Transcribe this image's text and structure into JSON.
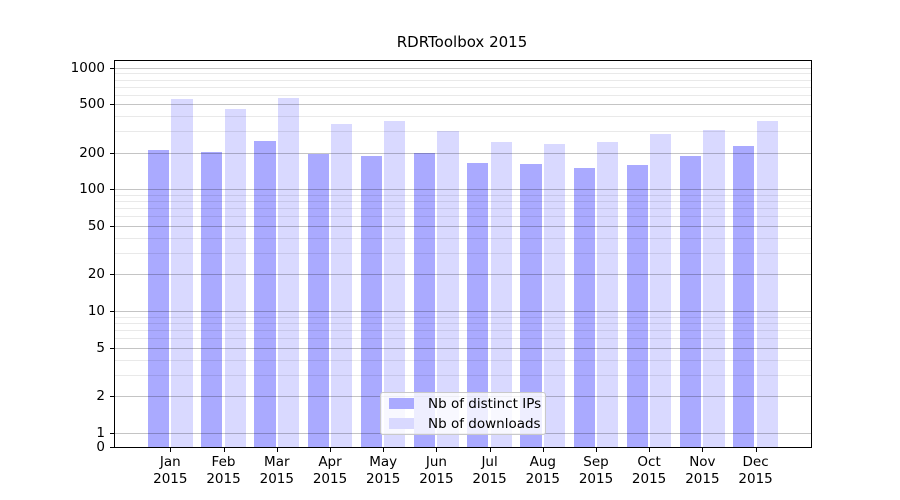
{
  "figure": {
    "background": "#ffffff"
  },
  "chart_data": {
    "type": "bar",
    "title": "RDRToolbox 2015",
    "categories": [
      "Jan 2015",
      "Feb 2015",
      "Mar 2015",
      "Apr 2015",
      "May 2015",
      "Jun 2015",
      "Jul 2015",
      "Aug 2015",
      "Sep 2015",
      "Oct 2015",
      "Nov 2015",
      "Dec 2015"
    ],
    "series": [
      {
        "name": "Nb of distinct IPs",
        "color": "#aaaaff",
        "values": [
          212,
          205,
          250,
          196,
          189,
          199,
          165,
          162,
          150,
          160,
          190,
          227
        ]
      },
      {
        "name": "Nb of downloads",
        "color": "#d9d9ff",
        "values": [
          555,
          461,
          560,
          346,
          365,
          305,
          245,
          238,
          245,
          286,
          307,
          365
        ]
      }
    ],
    "xlabel": "",
    "ylabel": "",
    "yscale": "log-with-zero",
    "yticks": [
      0,
      1,
      2,
      5,
      10,
      20,
      50,
      100,
      200,
      500,
      1000
    ],
    "ylim": [
      0,
      1000
    ],
    "grid": true,
    "grid_major_color": "#c4c4c4",
    "grid_minor_color": "#e9e9e9",
    "spine_color": "#000000",
    "legend_position": "lower center"
  }
}
